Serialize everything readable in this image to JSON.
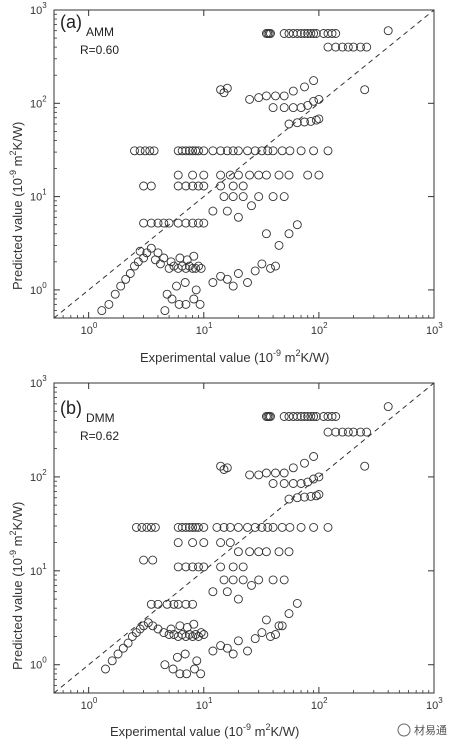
{
  "panels": [
    {
      "panel_label": "(a)",
      "model": "AMM",
      "r_text": "R=0.60",
      "xlabel": "Experimental value (10",
      "xlabel_exp": "-9",
      "xlabel_unit": " m",
      "xlabel_unit_exp": "2",
      "xlabel_tail": "K/W)",
      "ylabel": "Predicted value (10",
      "ylabel_exp": "-9",
      "ylabel_unit": " m",
      "ylabel_unit_exp": "2",
      "ylabel_tail": "K/W)"
    },
    {
      "panel_label": "(b)",
      "model": "DMM",
      "r_text": "R=0.62",
      "xlabel": "Experimental value (10",
      "xlabel_exp": "-9",
      "xlabel_unit": " m",
      "xlabel_unit_exp": "2",
      "xlabel_tail": "K/W)",
      "ylabel": "Predicted value (10",
      "ylabel_exp": "-9",
      "ylabel_unit": " m",
      "ylabel_unit_exp": "2",
      "ylabel_tail": "K/W)"
    }
  ],
  "watermark": "材易通",
  "chart_data": [
    {
      "type": "scatter",
      "title": "",
      "xscale": "log",
      "yscale": "log",
      "xlim": [
        0.5,
        1000
      ],
      "ylim": [
        0.5,
        1000
      ],
      "x_tick_labels": [
        "10",
        "10",
        "10",
        "10"
      ],
      "x_tick_exps": [
        "0",
        "1",
        "2",
        "3"
      ],
      "y_tick_labels": [
        "10",
        "10",
        "10",
        "10"
      ],
      "y_tick_exps": [
        "0",
        "1",
        "2",
        "3"
      ],
      "reference_line": "y = x (dashed)",
      "grid": false,
      "marker": "open circle",
      "annotations": [
        "(a)",
        "AMM",
        "R=0.60"
      ],
      "points": [
        [
          1.3,
          0.6
        ],
        [
          1.5,
          0.7
        ],
        [
          1.7,
          0.9
        ],
        [
          1.9,
          1.1
        ],
        [
          2.1,
          1.3
        ],
        [
          2.3,
          1.5
        ],
        [
          2.5,
          1.8
        ],
        [
          2.7,
          2.0
        ],
        [
          3.0,
          2.2
        ],
        [
          3.2,
          2.5
        ],
        [
          2.8,
          2.6
        ],
        [
          3.5,
          2.8
        ],
        [
          4.0,
          2.5
        ],
        [
          4.5,
          2.2
        ],
        [
          3.8,
          2.1
        ],
        [
          4.2,
          1.9
        ],
        [
          5.0,
          1.7
        ],
        [
          5.5,
          1.8
        ],
        [
          6.0,
          1.7
        ],
        [
          6.5,
          1.8
        ],
        [
          7.0,
          1.7
        ],
        [
          7.5,
          1.8
        ],
        [
          8.0,
          1.7
        ],
        [
          8.5,
          1.7
        ],
        [
          9.0,
          1.8
        ],
        [
          9.5,
          1.7
        ],
        [
          5.2,
          2.0
        ],
        [
          6.2,
          2.2
        ],
        [
          7.2,
          2.1
        ],
        [
          8.2,
          2.3
        ],
        [
          4.8,
          0.9
        ],
        [
          5.3,
          0.8
        ],
        [
          6.1,
          0.7
        ],
        [
          7.0,
          0.7
        ],
        [
          8.2,
          0.8
        ],
        [
          9.3,
          0.7
        ],
        [
          4.6,
          0.6
        ],
        [
          5.8,
          1.1
        ],
        [
          6.9,
          1.2
        ],
        [
          8.6,
          1.0
        ],
        [
          12,
          1.2
        ],
        [
          14,
          1.4
        ],
        [
          16,
          1.3
        ],
        [
          18,
          1.1
        ],
        [
          20,
          1.5
        ],
        [
          24,
          1.2
        ],
        [
          28,
          1.6
        ],
        [
          32,
          1.9
        ],
        [
          38,
          1.7
        ],
        [
          42,
          1.8
        ],
        [
          3.0,
          5.2
        ],
        [
          3.5,
          5.2
        ],
        [
          4.0,
          5.2
        ],
        [
          4.5,
          5.2
        ],
        [
          5.0,
          5.2
        ],
        [
          6.0,
          5.2
        ],
        [
          7.0,
          5.2
        ],
        [
          8.0,
          5.2
        ],
        [
          9.0,
          5.2
        ],
        [
          10,
          5.2
        ],
        [
          2.5,
          31
        ],
        [
          2.8,
          31
        ],
        [
          3.1,
          31
        ],
        [
          3.4,
          31
        ],
        [
          3.7,
          31
        ],
        [
          6.0,
          31
        ],
        [
          6.5,
          31
        ],
        [
          7.0,
          31
        ],
        [
          7.5,
          31
        ],
        [
          8.0,
          31
        ],
        [
          8.5,
          31
        ],
        [
          9.0,
          31
        ],
        [
          10,
          31
        ],
        [
          12,
          31
        ],
        [
          14,
          31
        ],
        [
          16,
          31
        ],
        [
          18,
          31
        ],
        [
          20,
          31
        ],
        [
          24,
          31
        ],
        [
          28,
          31
        ],
        [
          32,
          31
        ],
        [
          36,
          31
        ],
        [
          40,
          31
        ],
        [
          48,
          31
        ],
        [
          56,
          31
        ],
        [
          70,
          31
        ],
        [
          90,
          31
        ],
        [
          120,
          31
        ],
        [
          3.0,
          13
        ],
        [
          3.5,
          13
        ],
        [
          6.0,
          13
        ],
        [
          7.0,
          13
        ],
        [
          8.0,
          13
        ],
        [
          9.0,
          13
        ],
        [
          10,
          13
        ],
        [
          14,
          13
        ],
        [
          18,
          13
        ],
        [
          22,
          13
        ],
        [
          6.0,
          17
        ],
        [
          8.0,
          17
        ],
        [
          10,
          17
        ],
        [
          14,
          17
        ],
        [
          17,
          17
        ],
        [
          20,
          17
        ],
        [
          25,
          17
        ],
        [
          30,
          17
        ],
        [
          35,
          17
        ],
        [
          45,
          17
        ],
        [
          55,
          17
        ],
        [
          80,
          17
        ],
        [
          100,
          17
        ],
        [
          15,
          10
        ],
        [
          18,
          10
        ],
        [
          22,
          10
        ],
        [
          30,
          10
        ],
        [
          40,
          10
        ],
        [
          50,
          10
        ],
        [
          12,
          7
        ],
        [
          16,
          7
        ],
        [
          20,
          6
        ],
        [
          26,
          8
        ],
        [
          35,
          4
        ],
        [
          45,
          3
        ],
        [
          55,
          4
        ],
        [
          65,
          5
        ],
        [
          14,
          140
        ],
        [
          15,
          130
        ],
        [
          16,
          145
        ],
        [
          25,
          110
        ],
        [
          30,
          115
        ],
        [
          35,
          120
        ],
        [
          42,
          120
        ],
        [
          50,
          120
        ],
        [
          60,
          135
        ],
        [
          75,
          150
        ],
        [
          90,
          175
        ],
        [
          40,
          90
        ],
        [
          50,
          90
        ],
        [
          60,
          90
        ],
        [
          70,
          90
        ],
        [
          80,
          95
        ],
        [
          90,
          105
        ],
        [
          100,
          110
        ],
        [
          55,
          60
        ],
        [
          65,
          62
        ],
        [
          75,
          63
        ],
        [
          85,
          64
        ],
        [
          95,
          66
        ],
        [
          100,
          68
        ],
        [
          35,
          560
        ],
        [
          36,
          560
        ],
        [
          37,
          560
        ],
        [
          38,
          560
        ],
        [
          50,
          560
        ],
        [
          55,
          560
        ],
        [
          60,
          560
        ],
        [
          65,
          560
        ],
        [
          70,
          560
        ],
        [
          75,
          560
        ],
        [
          80,
          560
        ],
        [
          85,
          560
        ],
        [
          90,
          560
        ],
        [
          95,
          560
        ],
        [
          110,
          560
        ],
        [
          120,
          560
        ],
        [
          130,
          560
        ],
        [
          140,
          560
        ],
        [
          120,
          400
        ],
        [
          140,
          400
        ],
        [
          160,
          400
        ],
        [
          180,
          400
        ],
        [
          200,
          400
        ],
        [
          230,
          400
        ],
        [
          260,
          400
        ],
        [
          400,
          600
        ],
        [
          250,
          140
        ]
      ]
    },
    {
      "type": "scatter",
      "title": "",
      "xscale": "log",
      "yscale": "log",
      "xlim": [
        0.5,
        1000
      ],
      "ylim": [
        0.5,
        1000
      ],
      "x_tick_labels": [
        "10",
        "10",
        "10",
        "10"
      ],
      "x_tick_exps": [
        "0",
        "1",
        "2",
        "3"
      ],
      "y_tick_labels": [
        "10",
        "10",
        "10",
        "10"
      ],
      "y_tick_exps": [
        "0",
        "1",
        "2",
        "3"
      ],
      "reference_line": "y = x (dashed)",
      "grid": false,
      "marker": "open circle",
      "annotations": [
        "(b)",
        "DMM",
        "R=0.62"
      ],
      "points": [
        [
          1.4,
          0.9
        ],
        [
          1.6,
          1.1
        ],
        [
          1.8,
          1.3
        ],
        [
          2.0,
          1.5
        ],
        [
          2.2,
          1.7
        ],
        [
          2.4,
          2.0
        ],
        [
          2.6,
          2.2
        ],
        [
          2.8,
          2.4
        ],
        [
          3.0,
          2.6
        ],
        [
          3.3,
          2.8
        ],
        [
          3.6,
          2.6
        ],
        [
          4.0,
          2.4
        ],
        [
          4.5,
          2.2
        ],
        [
          5.0,
          2.1
        ],
        [
          5.5,
          2.1
        ],
        [
          6.0,
          2.0
        ],
        [
          6.5,
          2.1
        ],
        [
          7.0,
          2.0
        ],
        [
          7.5,
          2.1
        ],
        [
          8.0,
          2.0
        ],
        [
          8.5,
          2.1
        ],
        [
          9.0,
          2.0
        ],
        [
          9.5,
          2.2
        ],
        [
          10,
          2.1
        ],
        [
          5.2,
          2.4
        ],
        [
          6.2,
          2.6
        ],
        [
          7.2,
          2.5
        ],
        [
          8.2,
          2.7
        ],
        [
          4.8,
          4.4
        ],
        [
          5.5,
          4.4
        ],
        [
          6.0,
          4.4
        ],
        [
          7.0,
          4.4
        ],
        [
          8.0,
          4.4
        ],
        [
          3.5,
          4.4
        ],
        [
          4.0,
          4.4
        ],
        [
          4.6,
          1.0
        ],
        [
          5.4,
          0.9
        ],
        [
          6.2,
          0.8
        ],
        [
          7.1,
          0.8
        ],
        [
          8.3,
          0.9
        ],
        [
          9.4,
          0.8
        ],
        [
          5.9,
          1.2
        ],
        [
          6.9,
          1.3
        ],
        [
          8.7,
          1.1
        ],
        [
          12,
          1.4
        ],
        [
          14,
          1.6
        ],
        [
          16,
          1.5
        ],
        [
          18,
          1.3
        ],
        [
          20,
          1.8
        ],
        [
          24,
          1.4
        ],
        [
          28,
          1.9
        ],
        [
          32,
          2.2
        ],
        [
          38,
          2.0
        ],
        [
          42,
          2.1
        ],
        [
          48,
          2.6
        ],
        [
          2.6,
          29
        ],
        [
          2.9,
          29
        ],
        [
          3.2,
          29
        ],
        [
          3.5,
          29
        ],
        [
          3.8,
          29
        ],
        [
          6.0,
          29
        ],
        [
          6.5,
          29
        ],
        [
          7.0,
          29
        ],
        [
          7.5,
          29
        ],
        [
          8.0,
          29
        ],
        [
          8.5,
          29
        ],
        [
          9.0,
          29
        ],
        [
          10,
          29
        ],
        [
          13,
          29
        ],
        [
          15,
          29
        ],
        [
          17,
          29
        ],
        [
          20,
          29
        ],
        [
          24,
          29
        ],
        [
          28,
          29
        ],
        [
          32,
          29
        ],
        [
          36,
          29
        ],
        [
          40,
          29
        ],
        [
          48,
          29
        ],
        [
          56,
          29
        ],
        [
          70,
          29
        ],
        [
          90,
          29
        ],
        [
          120,
          29
        ],
        [
          3.0,
          13
        ],
        [
          3.6,
          13
        ],
        [
          6.0,
          11
        ],
        [
          7.0,
          11
        ],
        [
          8.0,
          11
        ],
        [
          9.0,
          11
        ],
        [
          10,
          11
        ],
        [
          14,
          11
        ],
        [
          18,
          11
        ],
        [
          22,
          11
        ],
        [
          6.0,
          20
        ],
        [
          8.0,
          20
        ],
        [
          10,
          20
        ],
        [
          14,
          20
        ],
        [
          17,
          20
        ],
        [
          20,
          16
        ],
        [
          25,
          16
        ],
        [
          30,
          16
        ],
        [
          35,
          16
        ],
        [
          45,
          16
        ],
        [
          55,
          16
        ],
        [
          15,
          8
        ],
        [
          18,
          8
        ],
        [
          22,
          8
        ],
        [
          30,
          8
        ],
        [
          40,
          8
        ],
        [
          50,
          8
        ],
        [
          12,
          6
        ],
        [
          16,
          6
        ],
        [
          20,
          5
        ],
        [
          26,
          7
        ],
        [
          35,
          3
        ],
        [
          45,
          2.6
        ],
        [
          55,
          3.5
        ],
        [
          65,
          4.5
        ],
        [
          14,
          130
        ],
        [
          15,
          120
        ],
        [
          16,
          125
        ],
        [
          25,
          105
        ],
        [
          30,
          105
        ],
        [
          35,
          110
        ],
        [
          42,
          110
        ],
        [
          50,
          110
        ],
        [
          60,
          125
        ],
        [
          75,
          140
        ],
        [
          90,
          165
        ],
        [
          40,
          85
        ],
        [
          50,
          85
        ],
        [
          60,
          85
        ],
        [
          70,
          85
        ],
        [
          80,
          88
        ],
        [
          90,
          95
        ],
        [
          100,
          100
        ],
        [
          55,
          58
        ],
        [
          65,
          60
        ],
        [
          75,
          61
        ],
        [
          85,
          62
        ],
        [
          95,
          63
        ],
        [
          100,
          65
        ],
        [
          35,
          440
        ],
        [
          36,
          440
        ],
        [
          37,
          440
        ],
        [
          38,
          440
        ],
        [
          50,
          440
        ],
        [
          55,
          440
        ],
        [
          60,
          440
        ],
        [
          65,
          440
        ],
        [
          70,
          440
        ],
        [
          75,
          440
        ],
        [
          80,
          440
        ],
        [
          85,
          440
        ],
        [
          90,
          440
        ],
        [
          95,
          440
        ],
        [
          110,
          440
        ],
        [
          120,
          440
        ],
        [
          130,
          440
        ],
        [
          140,
          440
        ],
        [
          120,
          300
        ],
        [
          140,
          300
        ],
        [
          160,
          300
        ],
        [
          180,
          300
        ],
        [
          200,
          300
        ],
        [
          230,
          300
        ],
        [
          260,
          300
        ],
        [
          400,
          560
        ],
        [
          250,
          130
        ]
      ]
    }
  ]
}
